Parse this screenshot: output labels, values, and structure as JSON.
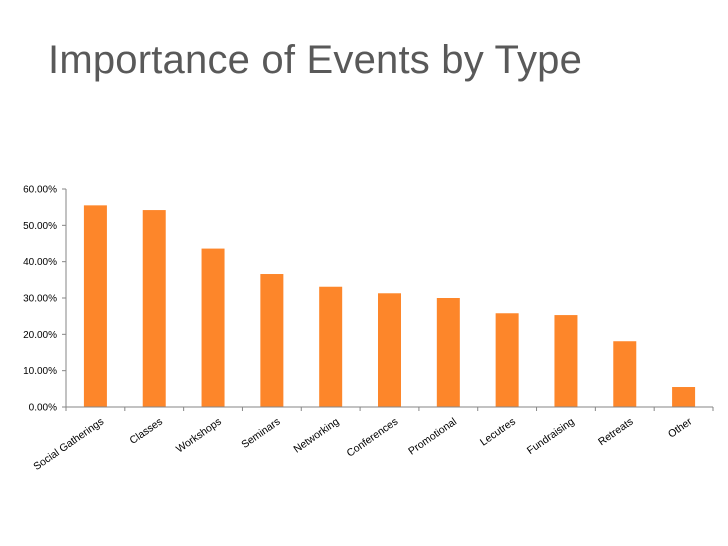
{
  "slide": {
    "title": "Importance of Events by Type"
  },
  "chart_data": {
    "type": "bar",
    "categories": [
      "Social Gatherings",
      "Classes",
      "Workshops",
      "Seminars",
      "Networking",
      "Conferences",
      "Promotional",
      "Lecutres",
      "Fundraising",
      "Retreats",
      "Other"
    ],
    "values": [
      55.5,
      54.2,
      43.6,
      36.6,
      33.1,
      31.3,
      30.0,
      25.8,
      25.3,
      18.1,
      5.5
    ],
    "ylim": [
      0,
      60
    ],
    "yticks": [
      0,
      10,
      20,
      30,
      40,
      50,
      60
    ],
    "ytick_labels": [
      "0.00%",
      "10.00%",
      "20.00%",
      "30.00%",
      "40.00%",
      "50.00%",
      "60.00%"
    ],
    "bar_color": "#fd862a",
    "grid": false,
    "legend": "none"
  }
}
